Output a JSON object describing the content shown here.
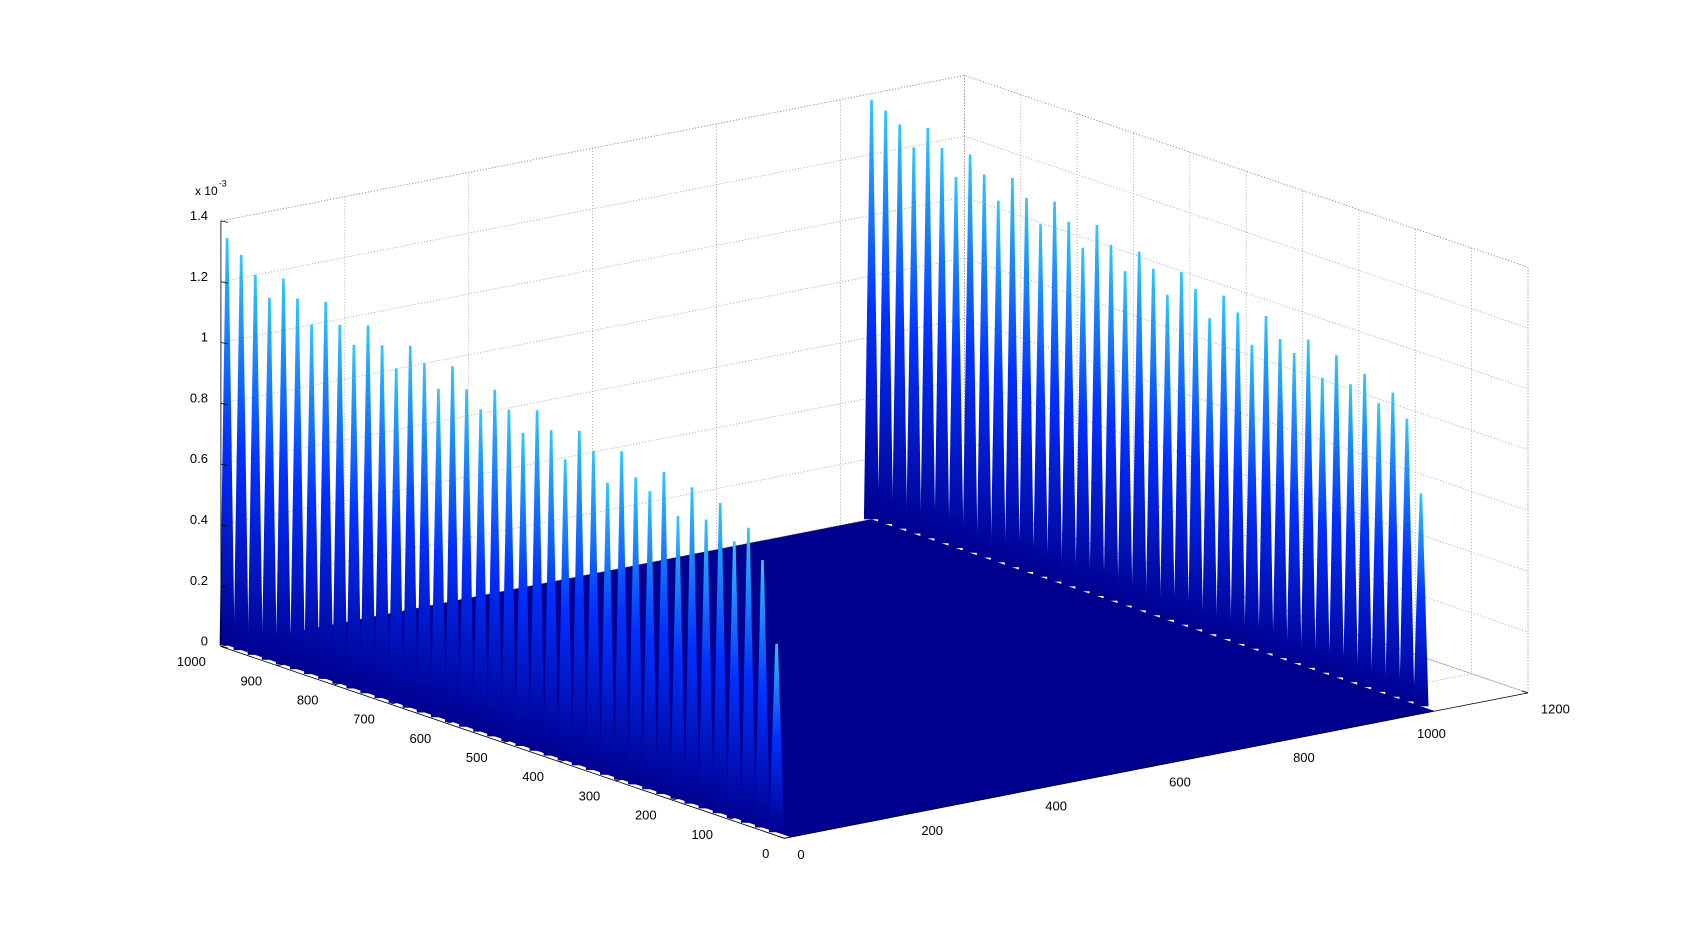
{
  "chart_data": {
    "type": "surface",
    "zlabel_multiplier": "x 10",
    "zlabel_exponent": "-3",
    "xlim": [
      0,
      1200
    ],
    "xticks": [
      0,
      200,
      400,
      600,
      800,
      1000,
      1200
    ],
    "ylim": [
      0,
      1000
    ],
    "yticks": [
      0,
      100,
      200,
      300,
      400,
      500,
      600,
      700,
      800,
      900,
      1000
    ],
    "zlim": [
      0,
      1.4
    ],
    "zticks": [
      0,
      0.2,
      0.4,
      0.6,
      0.8,
      1,
      1.2,
      1.4
    ],
    "grid": true,
    "colormap": [
      "#00008f",
      "#0030ff",
      "#30c8ff"
    ],
    "y": [
      25,
      50,
      75,
      100,
      125,
      150,
      175,
      200,
      225,
      250,
      275,
      300,
      325,
      350,
      375,
      400,
      425,
      450,
      475,
      500,
      525,
      550,
      575,
      600,
      625,
      650,
      675,
      700,
      725,
      750,
      775,
      800,
      825,
      850,
      875,
      900,
      925,
      950,
      975,
      1000
    ],
    "series": [
      {
        "x": 10,
        "values": [
          0.62,
          0.88,
          0.97,
          0.91,
          1.02,
          0.95,
          1.04,
          0.93,
          1.06,
          0.98,
          1.01,
          1.08,
          0.96,
          1.05,
          1.1,
          0.99,
          1.07,
          1.12,
          1.03,
          1.09,
          1.14,
          1.06,
          1.11,
          1.17,
          1.08,
          1.15,
          1.19,
          1.1,
          1.16,
          1.21,
          1.13,
          1.18,
          1.24,
          1.15,
          1.22,
          1.27,
          1.19,
          1.25,
          1.3,
          1.34
        ]
      },
      {
        "x": 1050,
        "values": [
          0.7,
          0.93,
          1.0,
          0.95,
          1.03,
          0.98,
          1.06,
          0.97,
          1.08,
          1.02,
          1.05,
          1.11,
          1.0,
          1.09,
          1.13,
          1.04,
          1.12,
          1.16,
          1.07,
          1.14,
          1.18,
          1.1,
          1.17,
          1.22,
          1.13,
          1.2,
          1.25,
          1.16,
          1.23,
          1.28,
          1.19,
          1.26,
          1.31,
          1.22,
          1.3,
          1.35,
          1.27,
          1.33,
          1.36,
          1.38
        ]
      }
    ]
  }
}
